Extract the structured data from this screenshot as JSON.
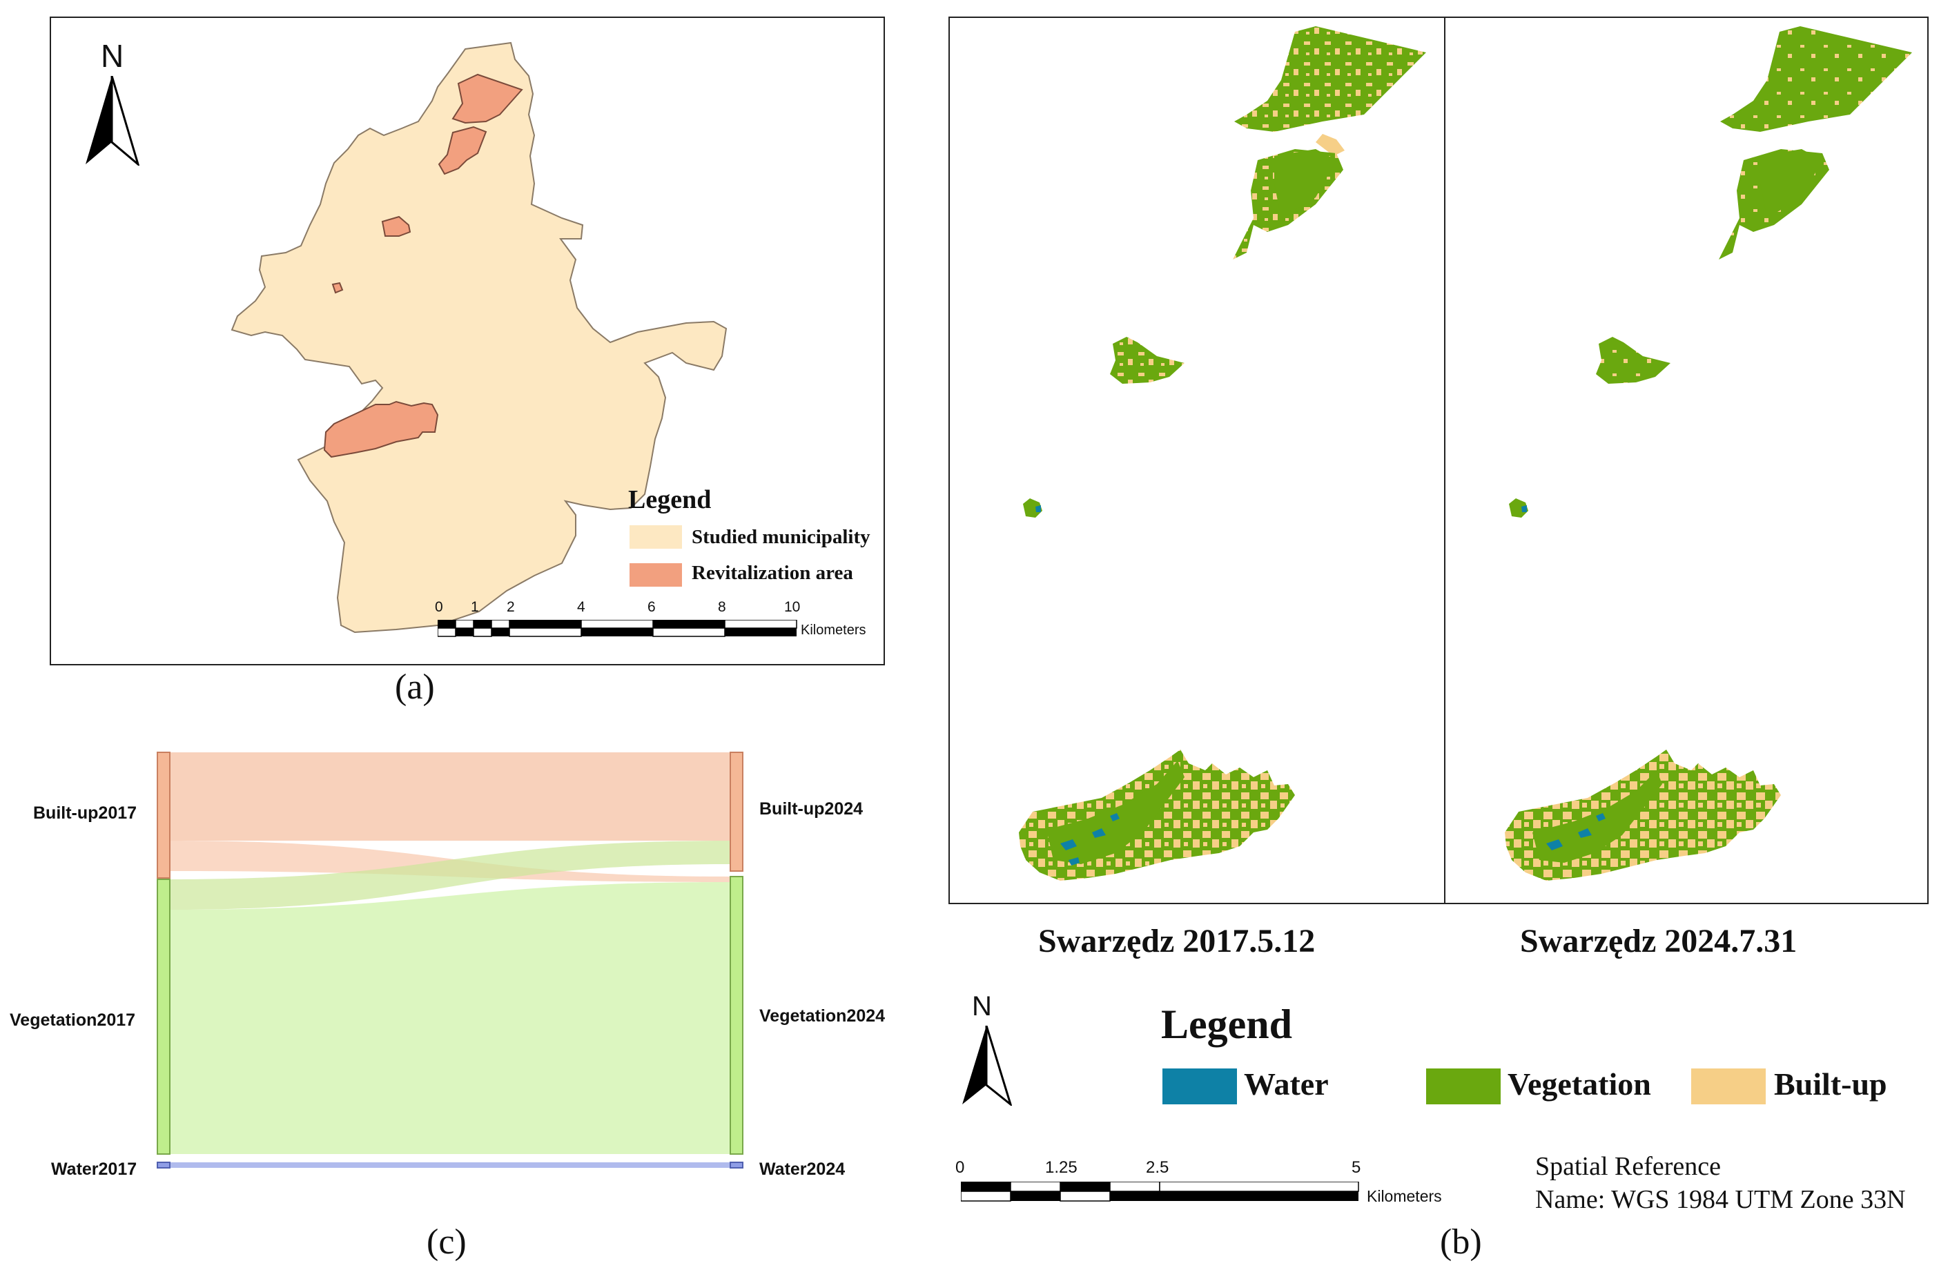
{
  "colors": {
    "municipality": "#fde8c2",
    "revitalization": "#f2a07f",
    "water": "#0e81a6",
    "vegetation": "#6aa80f",
    "builtup": "#f6cf87",
    "frame": "#222222",
    "sankey_builtup": "#f5b896",
    "sankey_vegetation": "#bfee8c",
    "sankey_water": "#8f9ee6"
  },
  "panel_a": {
    "label": "(a)",
    "north": "N",
    "legend": {
      "title": "Legend",
      "items": [
        {
          "label": "Studied municipality"
        },
        {
          "label": "Revitalization area"
        }
      ]
    },
    "scale": {
      "ticks": [
        "0",
        "1",
        "2",
        "4",
        "6",
        "8",
        "10"
      ],
      "unit": "Kilometers"
    }
  },
  "panel_b": {
    "label": "(b)",
    "maps": [
      {
        "caption": "Swarzędz 2017.5.12"
      },
      {
        "caption": "Swarzędz 2024.7.31"
      }
    ],
    "north": "N",
    "legend": {
      "title": "Legend",
      "items": [
        {
          "label": "Water",
          "color_key": "water"
        },
        {
          "label": "Vegetation",
          "color_key": "vegetation"
        },
        {
          "label": "Built-up",
          "color_key": "builtup"
        }
      ]
    },
    "scale": {
      "ticks": [
        "0",
        "1.25",
        "2.5",
        "5"
      ],
      "unit": "Kilometers"
    },
    "spatial_reference": {
      "title": "Spatial Reference",
      "name": "Name: WGS 1984 UTM Zone 33N"
    }
  },
  "panel_c": {
    "label": "(c)",
    "left_nodes": [
      {
        "label": "Built-up2017"
      },
      {
        "label": "Vegetation2017"
      },
      {
        "label": "Water2017"
      }
    ],
    "right_nodes": [
      {
        "label": "Built-up2024"
      },
      {
        "label": "Vegetation2024"
      },
      {
        "label": "Water2024"
      }
    ]
  }
}
